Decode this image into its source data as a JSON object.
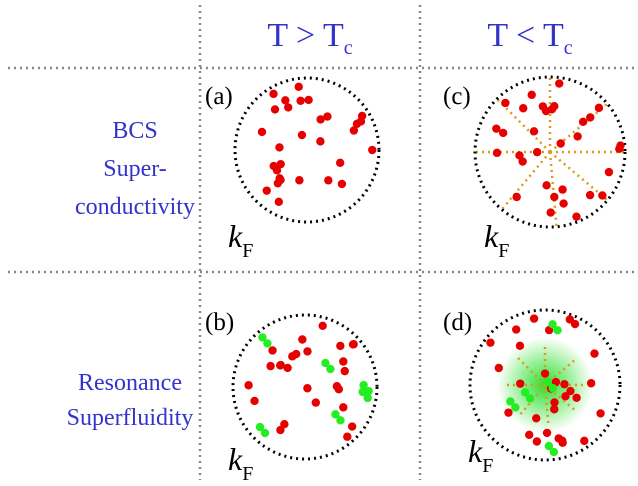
{
  "columns": [
    {
      "main": "T > T",
      "subscript": "c"
    },
    {
      "main": "T < T",
      "subscript": "c"
    }
  ],
  "rows": [
    {
      "lines": [
        "BCS",
        "Super-",
        "conductivity"
      ]
    },
    {
      "lines": [
        "Resonance",
        "Superfluidity"
      ]
    }
  ],
  "panels": [
    {
      "label": "(a)",
      "fermi": {
        "k": "k",
        "sub": "F"
      }
    },
    {
      "label": "(b)",
      "fermi": {
        "k": "k",
        "sub": "F"
      }
    },
    {
      "label": "(c)",
      "fermi": {
        "k": "k",
        "sub": "F"
      }
    },
    {
      "label": "(d)",
      "fermi": {
        "k": "k",
        "sub": "F"
      }
    }
  ]
}
